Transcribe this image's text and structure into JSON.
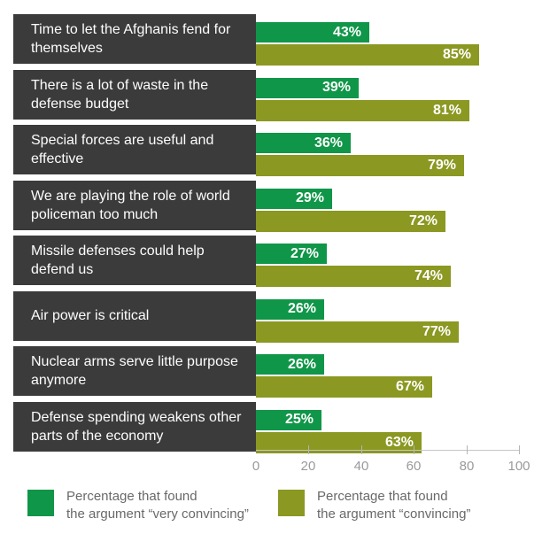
{
  "colors": {
    "very_convincing": "#109648",
    "convincing": "#8b9822",
    "label_box": "#3b3b3c",
    "label_text": "#fdfdfd",
    "value_text": "#ffffff",
    "axis_text": "#9a9a9a",
    "legend_text": "#696969"
  },
  "chart_data": {
    "type": "bar",
    "orientation": "horizontal",
    "title": "",
    "xlabel": "",
    "ylabel": "",
    "xlim": [
      0,
      100
    ],
    "x_ticks": [
      0,
      20,
      40,
      60,
      80,
      100
    ],
    "grid": false,
    "legend_position": "bottom",
    "value_suffix": "%",
    "categories": [
      "Time to let the Afghanis fend for themselves",
      "There is a lot of waste in the defense budget",
      "Special forces are useful and effective",
      "We are playing the role of world policeman too much",
      "Missile defenses could help defend us",
      "Air power is critical",
      "Nuclear arms serve little purpose anymore",
      "Defense spending weakens other parts of the economy"
    ],
    "series": [
      {
        "name": "Percentage that found the argument “very convincing”",
        "color_key": "very_convincing",
        "values": [
          43,
          39,
          36,
          29,
          27,
          26,
          26,
          25
        ]
      },
      {
        "name": "Percentage that found the argument “convincing”",
        "color_key": "convincing",
        "values": [
          85,
          81,
          79,
          72,
          74,
          77,
          67,
          63
        ]
      }
    ]
  },
  "legend": {
    "items": [
      {
        "line1": "Percentage that found",
        "line2": "the argument “very convincing”",
        "color_key": "very_convincing"
      },
      {
        "line1": "Percentage that found",
        "line2": "the argument “convincing”",
        "color_key": "convincing"
      }
    ]
  }
}
